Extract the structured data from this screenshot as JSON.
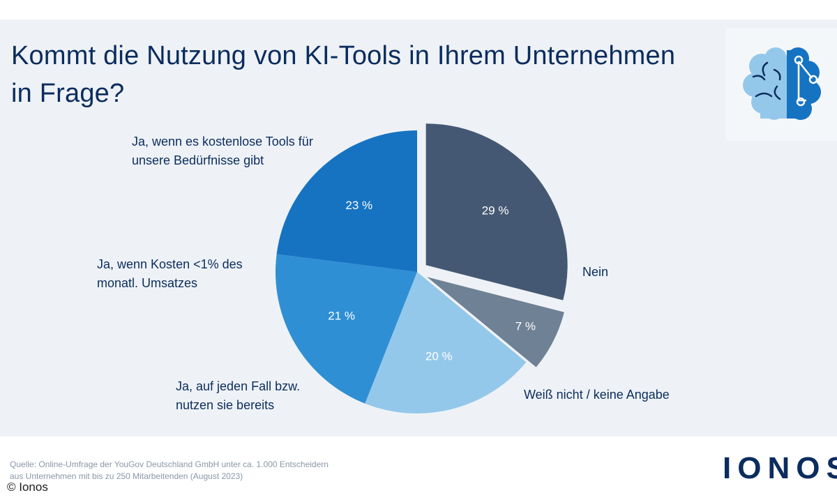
{
  "title": "Kommt die Nutzung von KI-Tools in Ihrem Unternehmen in Frage?",
  "chart_data": {
    "type": "pie",
    "title": "Kommt die Nutzung von KI-Tools in Ihrem Unternehmen in Frage?",
    "categories": [
      "Nein",
      "Weiß nicht / keine Angabe",
      "Ja, auf jeden Fall bzw. nutzen sie bereits",
      "Ja, wenn Kosten <1% des monatl. Umsatzes",
      "Ja, wenn es kostenlose Tools für unsere Bedürfnisse gibt"
    ],
    "values": [
      29,
      7,
      20,
      21,
      23
    ],
    "value_labels": [
      "29 %",
      "7 %",
      "20 %",
      "21 %",
      "23 %"
    ],
    "colors": [
      "#455873",
      "#6f8194",
      "#94c8ea",
      "#2e8fd5",
      "#1673c2"
    ],
    "exploded": [
      "Nein",
      "Weiß nicht / keine Angabe"
    ],
    "legend": "none",
    "grid": false
  },
  "labels": {
    "nein": "Nein",
    "weiss_nicht": "Weiß nicht / keine Angabe",
    "ja_fall_line1": "Ja, auf jeden Fall bzw.",
    "ja_fall_line2": "nutzen sie bereits",
    "ja_kosten_line1": "Ja, wenn Kosten <1% des",
    "ja_kosten_line2": "monatl. Umsatzes",
    "ja_kostenlos_line1": "Ja, wenn es kostenlose Tools für",
    "ja_kostenlos_line2": "unsere Bedürfnisse gibt"
  },
  "footer": {
    "source_line1": "Quelle: Online-Umfrage der YouGov Deutschland GmbH unter ca. 1.000 Entscheidern",
    "source_line2": "aus Unternehmen mit bis zu 250 Mitarbeitenden (August 2023)",
    "copyright": "© Ionos",
    "brand": "IONOS"
  },
  "icon": "ai-brain-icon",
  "colors": {
    "title": "#0b2c5e",
    "panel": "#eef2f6"
  }
}
